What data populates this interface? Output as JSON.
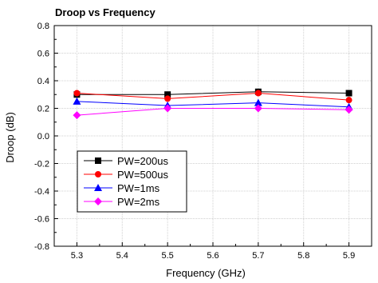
{
  "chart_data": {
    "type": "line",
    "title": "Droop vs Frequency",
    "xlabel": "Frequency (GHz)",
    "ylabel": "Droop (dB)",
    "xlim": [
      5.25,
      5.95
    ],
    "ylim": [
      -0.8,
      0.8
    ],
    "xticks": [
      5.3,
      5.4,
      5.5,
      5.6,
      5.7,
      5.8,
      5.9
    ],
    "xtick_labels": [
      "5.3",
      "5.4",
      "5.5",
      "5.6",
      "5.7",
      "5.8",
      "5.9"
    ],
    "yticks": [
      -0.8,
      -0.6,
      -0.4,
      -0.2,
      0.0,
      0.2,
      0.4,
      0.6,
      0.8
    ],
    "ytick_labels": [
      "-0.8",
      "-0.6",
      "-0.4",
      "-0.2",
      "0.0",
      "0.2",
      "0.4",
      "0.6",
      "0.8"
    ],
    "grid": true,
    "legend_position": "lower-left",
    "x": [
      5.3,
      5.5,
      5.7,
      5.9
    ],
    "series": [
      {
        "name": "PW=200us",
        "values": [
          0.3,
          0.3,
          0.32,
          0.31
        ],
        "color": "#000000",
        "marker": "square"
      },
      {
        "name": "PW=500us",
        "values": [
          0.31,
          0.27,
          0.31,
          0.26
        ],
        "color": "#ff0000",
        "marker": "circle"
      },
      {
        "name": "PW=1ms",
        "values": [
          0.25,
          0.22,
          0.24,
          0.21
        ],
        "color": "#0000ff",
        "marker": "triangle"
      },
      {
        "name": "PW=2ms",
        "values": [
          0.15,
          0.2,
          0.2,
          0.19
        ],
        "color": "#ff00ff",
        "marker": "diamond"
      }
    ]
  }
}
